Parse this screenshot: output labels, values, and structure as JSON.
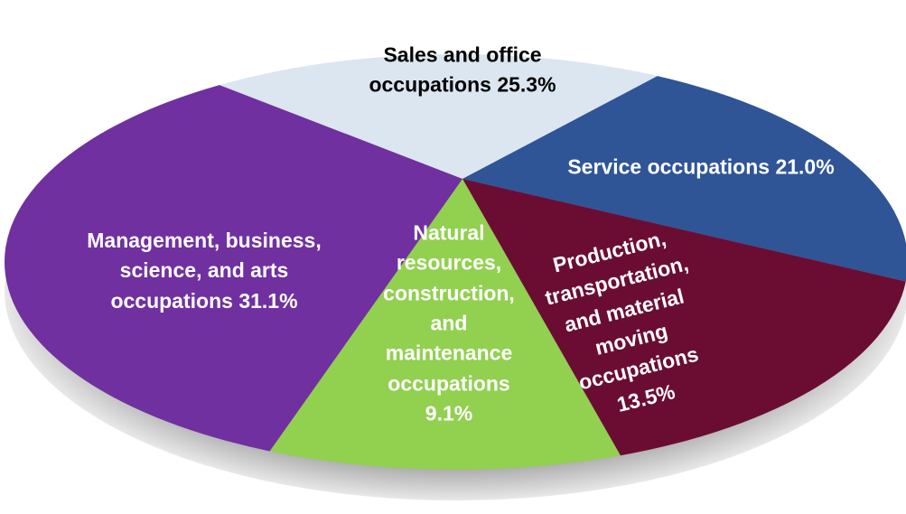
{
  "chart_data": {
    "type": "pie",
    "categories": [
      "Sales and office occupations",
      "Service occupations",
      "Production, transportation, and material moving occupations",
      "Natural resources, construction, and maintenance occupations",
      "Management, business, science, and arts occupations"
    ],
    "values": [
      25.3,
      21.0,
      13.5,
      9.1,
      31.1
    ],
    "value_labels": [
      "25.3%",
      "21.0%",
      "13.5%",
      "9.1%",
      "31.1%"
    ],
    "colors": [
      "#dce6f1",
      "#2f5597",
      "#6b0d33",
      "#92d050",
      "#7030a0"
    ]
  }
}
